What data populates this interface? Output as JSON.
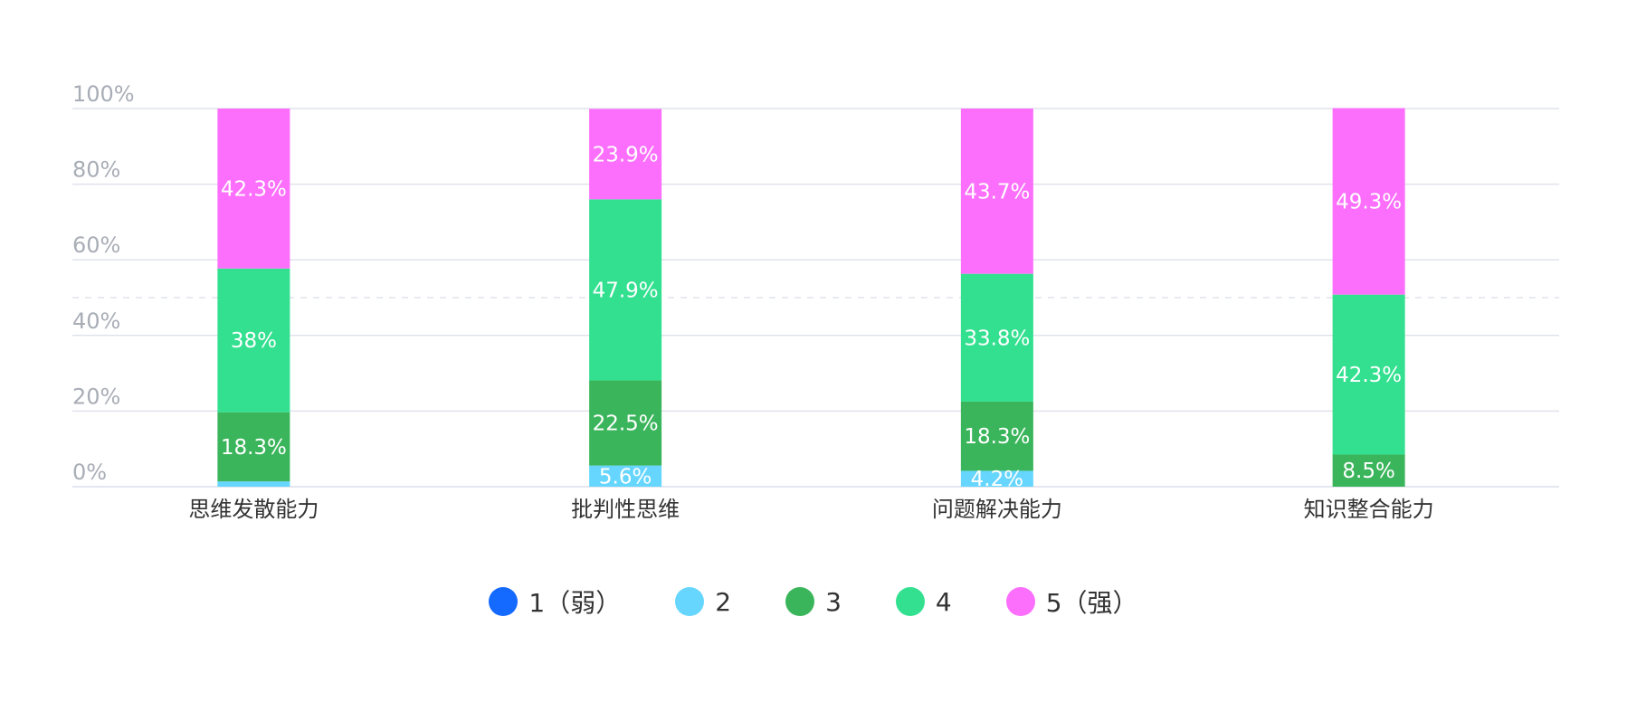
{
  "chart_data": {
    "type": "bar",
    "stacked": true,
    "categories": [
      "思维发散能力",
      "批判性思维",
      "问题解决能力",
      "知识整合能力"
    ],
    "series": [
      {
        "name": "1（弱）",
        "color": "#1469ff",
        "values": [
          0,
          0,
          0,
          0
        ],
        "labels": [
          "",
          "",
          "",
          ""
        ]
      },
      {
        "name": "2",
        "color": "#66d6ff",
        "values": [
          1.4,
          5.6,
          4.2,
          0
        ],
        "labels": [
          "",
          "5.6%",
          "4.2%",
          ""
        ]
      },
      {
        "name": "3",
        "color": "#3bb55b",
        "values": [
          18.3,
          22.5,
          18.3,
          8.5
        ],
        "labels": [
          "18.3%",
          "22.5%",
          "18.3%",
          "8.5%"
        ]
      },
      {
        "name": "4",
        "color": "#33e090",
        "values": [
          38,
          47.9,
          33.8,
          42.3
        ],
        "labels": [
          "38%",
          "47.9%",
          "33.8%",
          "42.3%"
        ]
      },
      {
        "name": "5（强）",
        "color": "#fc6ffc",
        "values": [
          42.3,
          23.9,
          43.7,
          49.3
        ],
        "labels": [
          "42.3%",
          "23.9%",
          "43.7%",
          "49.3%"
        ]
      }
    ],
    "y_ticks": [
      "0%",
      "20%",
      "40%",
      "60%",
      "80%",
      "100%"
    ],
    "ylim": [
      0,
      100
    ],
    "reference_line": 50,
    "grid": true,
    "legend_position": "bottom-center",
    "title": "",
    "xlabel": "",
    "ylabel": ""
  }
}
